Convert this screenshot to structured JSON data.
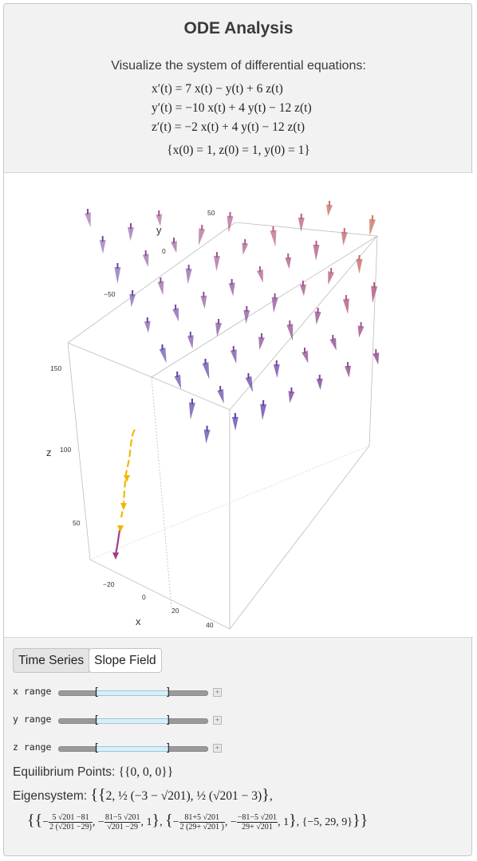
{
  "title": "ODE Analysis",
  "subtitle": "Visualize the system of differential equations:",
  "equations": [
    "x′(t) = 7 x(t) − y(t) + 6 z(t)",
    "y′(t) = −10 x(t) + 4 y(t) − 12 z(t)",
    "z′(t) = −2 x(t) + 4 y(t) − 12 z(t)"
  ],
  "initial_conditions": "{x(0) = 1, z(0) = 1, y(0) = 1}",
  "plot": {
    "axis_labels": {
      "x": "x",
      "y": "y",
      "z": "z"
    },
    "x_ticks": [
      "−20",
      "0",
      "20",
      "40"
    ],
    "y_ticks": [
      "50",
      "0",
      "−50"
    ],
    "z_ticks": [
      "150",
      "100",
      "50"
    ],
    "colors": {
      "low": "#5b3fa6",
      "mid": "#b25a86",
      "high": "#f0a030",
      "trajectory": "#f2b800",
      "trajectory_end": "#a13a8a"
    }
  },
  "tabs": [
    {
      "label": "Time Series",
      "active": false
    },
    {
      "label": "Slope Field",
      "active": true
    }
  ],
  "sliders": [
    {
      "label": "x range"
    },
    {
      "label": "y range"
    },
    {
      "label": "z range"
    }
  ],
  "equilibrium": {
    "label": "Equilibrium Points:",
    "value": "{{0, 0, 0}}"
  },
  "eigensystem": {
    "label": "Eigensystem:",
    "eigenvalues": [
      "2",
      "½ (−3 − √201)",
      "½ (√201 − 3)"
    ],
    "v1_a_num": "5 √201 −81",
    "v1_a_den": "2 (√201 −29)",
    "v1_b_num": "81−5 √201",
    "v1_b_den": "√201 −29",
    "v2_a_num": "81+5 √201",
    "v2_a_den": "2 (29+ √201 )",
    "v2_b_num": "−81−5 √201",
    "v2_b_den": "29+ √201",
    "v3": "{−5, 29, 9}"
  }
}
